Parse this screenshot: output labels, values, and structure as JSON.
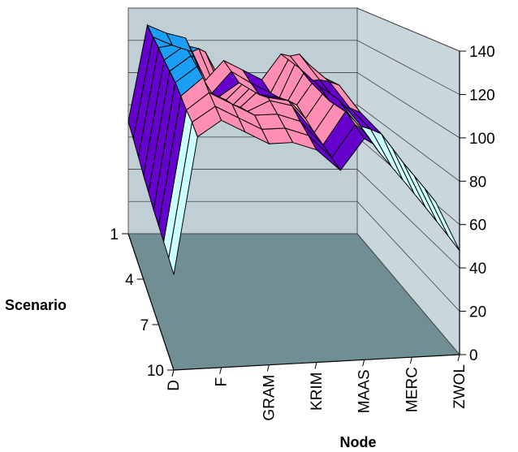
{
  "chart_data": {
    "type": "surface",
    "title": "",
    "xlabel": "Node",
    "ylabel": "Scenario",
    "zlabel": "",
    "zlim": [
      0,
      140
    ],
    "z_ticks": [
      0,
      20,
      40,
      60,
      80,
      100,
      120,
      140
    ],
    "x_tick_labels": [
      "D",
      "F",
      "GRAM",
      "KRIM",
      "MAAS",
      "MERC",
      "ZWOL"
    ],
    "y_tick_labels": [
      "1",
      "4",
      "7",
      "10"
    ],
    "x_categories_count": 13,
    "y_categories_count": 10,
    "band_colors": [
      "#7030a0",
      "#ffffcc",
      "#ccffff",
      "#6600cc",
      "#ff8db4",
      "#1a9ff5"
    ],
    "wall_color": "#c0ced6",
    "floor_color": "#6f8f95",
    "values": [
      [
        70,
        130,
        125,
        122,
        95,
        108,
        102,
        96,
        112,
        103,
        92,
        84,
        70
      ],
      [
        66,
        127,
        122,
        118,
        93,
        106,
        99,
        93,
        115,
        100,
        88,
        80,
        66
      ],
      [
        62,
        125,
        127,
        124,
        96,
        104,
        97,
        95,
        120,
        105,
        90,
        78,
        62
      ],
      [
        58,
        122,
        130,
        126,
        99,
        110,
        100,
        98,
        118,
        108,
        93,
        81,
        60
      ],
      [
        55,
        120,
        128,
        123,
        101,
        112,
        106,
        100,
        116,
        110,
        95,
        83,
        58
      ],
      [
        52,
        118,
        126,
        120,
        104,
        114,
        110,
        97,
        113,
        106,
        92,
        80,
        56
      ],
      [
        50,
        115,
        124,
        117,
        106,
        111,
        108,
        94,
        110,
        103,
        89,
        77,
        54
      ],
      [
        48,
        112,
        120,
        114,
        108,
        108,
        104,
        92,
        108,
        100,
        86,
        75,
        52
      ],
      [
        46,
        110,
        117,
        111,
        105,
        105,
        101,
        90,
        105,
        97,
        84,
        73,
        50
      ],
      [
        44,
        107,
        114,
        108,
        102,
        102,
        98,
        88,
        102,
        95,
        82,
        71,
        48
      ]
    ]
  }
}
